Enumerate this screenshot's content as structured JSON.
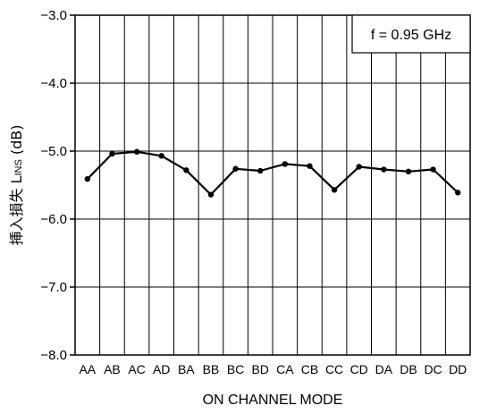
{
  "chart_data": {
    "type": "line",
    "title": "",
    "xlabel": "ON CHANNEL MODE",
    "ylabel_main": "挿入損失 L",
    "ylabel_sub": "INS",
    "ylabel_unit": " (dB)",
    "categories": [
      "AA",
      "AB",
      "AC",
      "AD",
      "BA",
      "BB",
      "BC",
      "BD",
      "CA",
      "CB",
      "CC",
      "CD",
      "DA",
      "DB",
      "DC",
      "DD"
    ],
    "series": [
      {
        "values": [
          -5.41,
          -5.04,
          -5.01,
          -5.07,
          -5.28,
          -5.64,
          -5.26,
          -5.29,
          -5.19,
          -5.22,
          -5.57,
          -5.23,
          -5.27,
          -5.3,
          -5.27,
          -5.61
        ]
      }
    ],
    "ylim": [
      -8.0,
      -3.0
    ],
    "yticks": [
      -3.0,
      -4.0,
      -5.0,
      -6.0,
      -7.0,
      -8.0
    ],
    "ytick_labels": [
      "−3.0",
      "−4.0",
      "−5.0",
      "−6.0",
      "−7.0",
      "−8.0"
    ],
    "grid": true,
    "annotation": "f = 0.95 GHz",
    "legend_position": "top-right",
    "line_color": "#000000"
  }
}
